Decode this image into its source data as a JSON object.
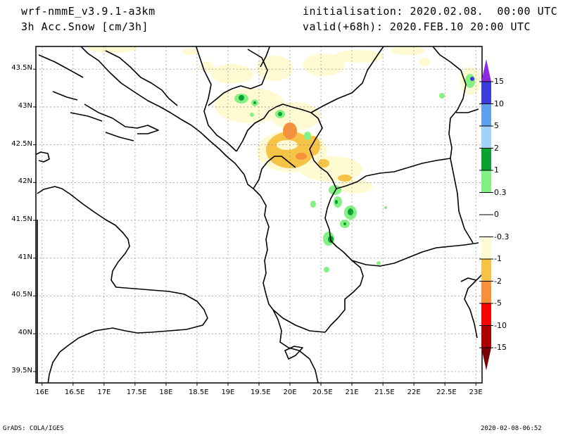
{
  "header": {
    "model": "wrf-nmmE_v3.9.1-a3km",
    "field": "3h Acc.Snow [cm/3h]",
    "init": "initialisation: 2020.02.08.  00:00 UTC",
    "valid": "valid(+68h): 2020.FEB.10 20:00 UTC"
  },
  "axes": {
    "lon_labels": [
      "16E",
      "16.5E",
      "17E",
      "17.5E",
      "18E",
      "18.5E",
      "19E",
      "19.5E",
      "20E",
      "20.5E",
      "21E",
      "21.5E",
      "22E",
      "22.5E",
      "23E"
    ],
    "lat_labels": [
      "43.5N",
      "43N",
      "42.5N",
      "42N",
      "41.5N",
      "41N",
      "40.5N",
      "40N",
      "39.5N"
    ],
    "lon_range": [
      15.9,
      23.1
    ],
    "lat_range": [
      39.35,
      43.8
    ]
  },
  "colorbar": {
    "labels": [
      "15",
      "10",
      "5",
      "2",
      "1",
      "0.3",
      "0",
      "-0.3",
      "-1",
      "-2",
      "-5",
      "-10",
      "-15"
    ],
    "colors": [
      "#8a2be2",
      "#3c3cdc",
      "#5fa0ef",
      "#a0d2fa",
      "#0aa032",
      "#82f082",
      "#ffffff",
      "#ffffff",
      "#fffad2",
      "#f5c346",
      "#f5913c",
      "#ff0000",
      "#aa0000",
      "#780000"
    ]
  },
  "footer": {
    "left": "GrADS: COLA/IGES",
    "right": "2020-02-08-06:52"
  }
}
